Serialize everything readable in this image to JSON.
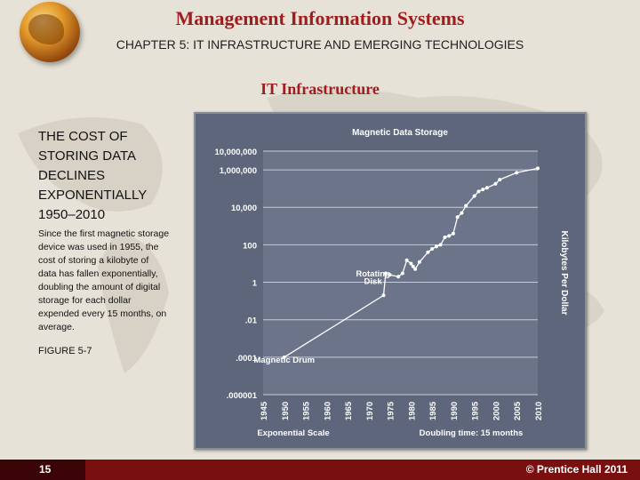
{
  "header": {
    "title": "Management Information Systems",
    "subtitle": "CHAPTER 5: IT INFRASTRUCTURE AND EMERGING TECHNOLOGIES",
    "section": "IT Infrastructure"
  },
  "left": {
    "heading_lines": [
      "THE COST OF",
      "STORING DATA",
      "DECLINES",
      "EXPONENTIALLY",
      "1950–2010"
    ],
    "body_lines": [
      "Since the first magnetic storage",
      "device was used in 1955, the",
      "cost of storing a kilobyte of",
      "data has fallen exponentially,",
      "doubling the amount of digital",
      "storage for each dollar",
      "expended every 15 months, on",
      "average."
    ],
    "figure_label": "FIGURE 5-7"
  },
  "footer": {
    "page": "15",
    "copyright": "© Prentice Hall 2011"
  },
  "colors": {
    "title": "#a11d1d",
    "chart_bg": "#5d667a",
    "footer": "#7a0f10"
  },
  "icons": {
    "logo": "globe-icon"
  },
  "chart_data": {
    "type": "line",
    "title": "Magnetic Data Storage",
    "xlabel": "Exponential Scale",
    "ylabel": "Kilobytes Per Dollar",
    "note": "Doubling time: 15 months",
    "y_scale": "log",
    "xlim": [
      1945,
      2010
    ],
    "ylim": [
      1e-06,
      10000000
    ],
    "x_ticks": [
      "1945",
      "1950",
      "1955",
      "1960",
      "1965",
      "1970",
      "1975",
      "1980",
      "1985",
      "1990",
      "1995",
      "2000",
      "2005",
      "2010"
    ],
    "y_ticks": [
      {
        "value": 10000000,
        "label": "10,000,000"
      },
      {
        "value": 1000000,
        "label": "1,000,000"
      },
      {
        "value": 10000,
        "label": "10,000"
      },
      {
        "value": 100,
        "label": "100"
      },
      {
        "value": 1,
        "label": "1"
      },
      {
        "value": 0.01,
        "label": ".01"
      },
      {
        "value": 0.0001,
        "label": ".0001"
      },
      {
        "value": 1e-06,
        "label": ".000001"
      }
    ],
    "annotations": [
      {
        "text": "Magnetic Drum",
        "x": 1950,
        "y": 5e-05
      },
      {
        "text": "Rotating",
        "x": 1971,
        "y": 2
      },
      {
        "text": "Disk",
        "x": 1971,
        "y": 0.8
      }
    ],
    "series": [
      {
        "x": [
          1950,
          1973.5,
          1974,
          1975,
          1977,
          1978,
          1979,
          1980,
          1980.5,
          1981,
          1982,
          1984,
          1985,
          1986,
          1987,
          1988,
          1989,
          1990,
          1991,
          1992,
          1993,
          1995,
          1996,
          1997,
          1998,
          2000,
          2001,
          2005,
          2010
        ],
        "y": [
          0.0001,
          0.2,
          3,
          2.5,
          2,
          3,
          15,
          10,
          7,
          5,
          12,
          40,
          60,
          80,
          100,
          250,
          300,
          400,
          3000,
          5000,
          12000,
          40000,
          70000,
          90000,
          110000,
          180000,
          300000,
          700000,
          1200000
        ]
      }
    ]
  }
}
